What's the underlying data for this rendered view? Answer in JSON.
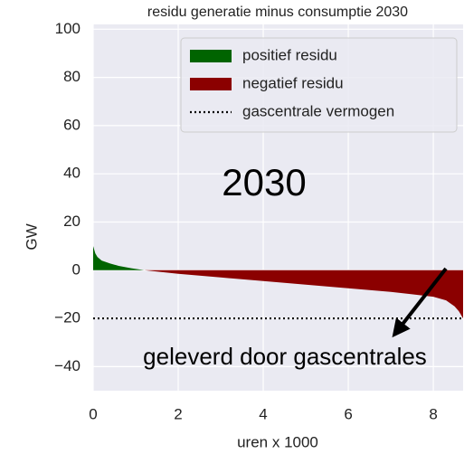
{
  "chart_data": {
    "type": "area",
    "title": "residu generatie minus consumptie 2030",
    "xlabel": "uren x 1000",
    "ylabel": "GW",
    "xlim": [
      0,
      8.7
    ],
    "ylim": [
      -50,
      102
    ],
    "xticks": [
      0,
      2,
      4,
      6,
      8
    ],
    "yticks": [
      {
        "value": -40,
        "label": "−40"
      },
      {
        "value": -20,
        "label": "−20"
      },
      0,
      20,
      40,
      60,
      80,
      100
    ],
    "grid": true,
    "legend": "upper right",
    "series": [
      {
        "name": "positief residu",
        "color": "#006400",
        "x": [
          0,
          0.05,
          0.1,
          0.2,
          0.4,
          0.6,
          0.9,
          1.2
        ],
        "values": [
          10,
          7,
          5.5,
          4,
          2.8,
          1.8,
          0.8,
          0
        ]
      },
      {
        "name": "negatief residu",
        "color": "#8b0000",
        "x": [
          1.2,
          2,
          3,
          4,
          5,
          6,
          7,
          7.5,
          8,
          8.3,
          8.5,
          8.6,
          8.7
        ],
        "values": [
          0,
          -1.5,
          -3,
          -4.5,
          -6,
          -7.5,
          -9,
          -10,
          -11,
          -12.5,
          -15,
          -17,
          -20
        ]
      }
    ],
    "hline": {
      "name": "gascentrale vermogen",
      "value": -20,
      "color": "#000000",
      "style": "dotted"
    },
    "annotations": [
      "2030",
      "geleverd door gascentrales"
    ]
  }
}
